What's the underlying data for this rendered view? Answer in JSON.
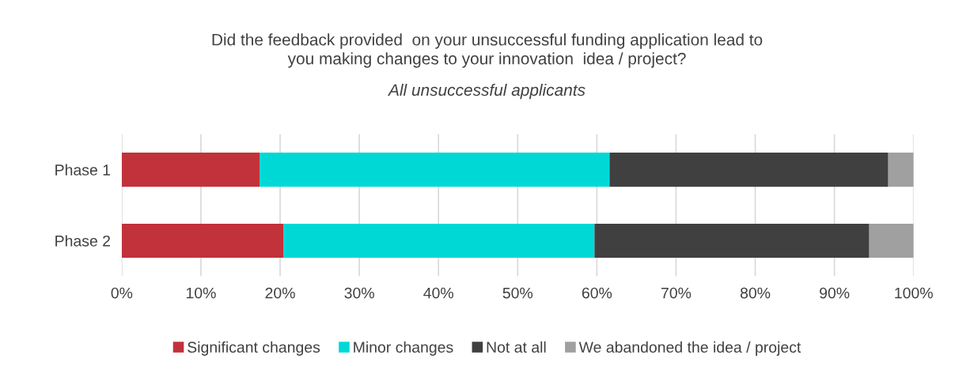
{
  "chart_data": {
    "type": "bar",
    "orientation": "horizontal",
    "stacked": true,
    "title": "Did the feedback provided  on your unsuccessful funding application lead to\nyou making changes to your innovation  idea / project?",
    "subtitle": "All unsuccessful applicants",
    "categories": [
      "Phase 1",
      "Phase 2"
    ],
    "series": [
      {
        "name": "Significant changes",
        "color": "#c1323b",
        "values": [
          17.4,
          20.4
        ]
      },
      {
        "name": "Minor changes",
        "color": "#00d8d6",
        "values": [
          44.2,
          39.3
        ]
      },
      {
        "name": "Not at all",
        "color": "#404040",
        "values": [
          35.2,
          34.7
        ]
      },
      {
        "name": "We abandoned the idea / project",
        "color": "#a0a0a0",
        "values": [
          3.2,
          5.6
        ]
      }
    ],
    "xlim": [
      0,
      100
    ],
    "xticks": [
      {
        "value": 0,
        "label": "0%"
      },
      {
        "value": 10,
        "label": "10%"
      },
      {
        "value": 20,
        "label": "20%"
      },
      {
        "value": 30,
        "label": "30%"
      },
      {
        "value": 40,
        "label": "40%"
      },
      {
        "value": 50,
        "label": "50%"
      },
      {
        "value": 60,
        "label": "60%"
      },
      {
        "value": 70,
        "label": "70%"
      },
      {
        "value": 80,
        "label": "80%"
      },
      {
        "value": 90,
        "label": "90%"
      },
      {
        "value": 100,
        "label": "100%"
      }
    ],
    "grid": "x",
    "legend": "bottom"
  }
}
